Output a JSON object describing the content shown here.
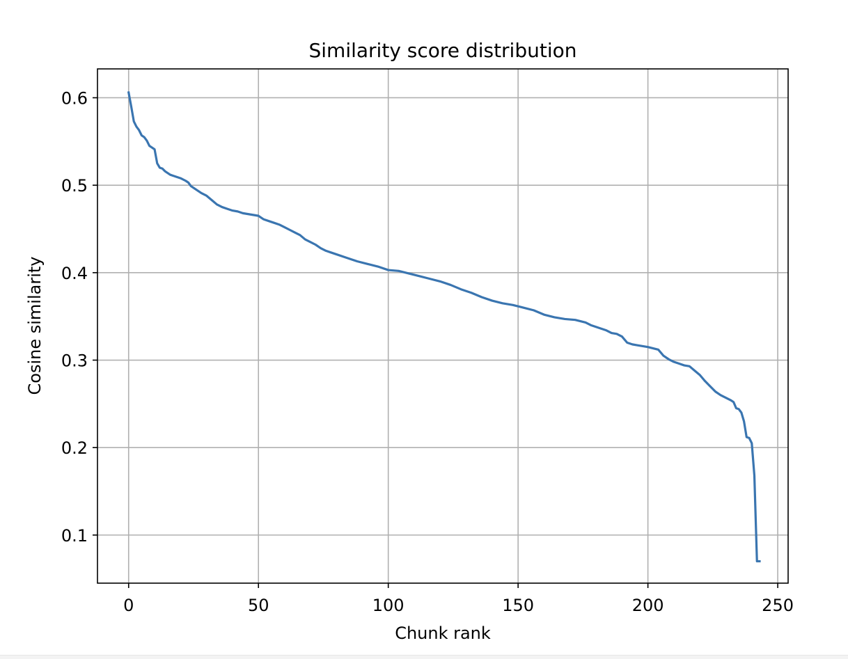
{
  "chart_data": {
    "type": "line",
    "title": "Similarity score distribution",
    "xlabel": "Chunk rank",
    "ylabel": "Cosine similarity",
    "xlim": [
      -12,
      254
    ],
    "ylim": [
      0.045,
      0.633
    ],
    "xticks": [
      0,
      50,
      100,
      150,
      200,
      250
    ],
    "xtick_labels": [
      "0",
      "50",
      "100",
      "150",
      "200",
      "250"
    ],
    "yticks": [
      0.1,
      0.2,
      0.3,
      0.4,
      0.5,
      0.6
    ],
    "ytick_labels": [
      "0.1",
      "0.2",
      "0.3",
      "0.4",
      "0.5",
      "0.6"
    ],
    "grid": true,
    "legend": false,
    "series": [
      {
        "color": "#3a75b0",
        "x": [
          0,
          1,
          2,
          3,
          4,
          5,
          6,
          7,
          8,
          9,
          10,
          11,
          12,
          13,
          14,
          15,
          16,
          17,
          18,
          19,
          20,
          22,
          23,
          24,
          26,
          28,
          30,
          32,
          34,
          36,
          38,
          40,
          42,
          44,
          46,
          48,
          50,
          52,
          54,
          56,
          58,
          60,
          62,
          64,
          66,
          68,
          70,
          72,
          74,
          76,
          78,
          80,
          84,
          88,
          92,
          96,
          100,
          104,
          108,
          112,
          116,
          120,
          124,
          128,
          132,
          136,
          140,
          144,
          148,
          152,
          156,
          160,
          164,
          168,
          172,
          176,
          178,
          180,
          182,
          184,
          186,
          188,
          190,
          192,
          194,
          196,
          198,
          200,
          204,
          206,
          208,
          210,
          212,
          214,
          216,
          218,
          220,
          222,
          224,
          226,
          228,
          230,
          232,
          233,
          234,
          235,
          236,
          237,
          238,
          239,
          240,
          241,
          242,
          243
        ],
        "y": [
          0.606,
          0.59,
          0.573,
          0.567,
          0.563,
          0.557,
          0.555,
          0.551,
          0.545,
          0.543,
          0.541,
          0.525,
          0.52,
          0.519,
          0.516,
          0.514,
          0.512,
          0.511,
          0.51,
          0.509,
          0.508,
          0.505,
          0.503,
          0.499,
          0.495,
          0.491,
          0.488,
          0.483,
          0.478,
          0.475,
          0.473,
          0.471,
          0.47,
          0.468,
          0.467,
          0.466,
          0.465,
          0.461,
          0.459,
          0.457,
          0.455,
          0.452,
          0.449,
          0.446,
          0.443,
          0.438,
          0.435,
          0.432,
          0.428,
          0.425,
          0.423,
          0.421,
          0.417,
          0.413,
          0.41,
          0.407,
          0.403,
          0.402,
          0.399,
          0.396,
          0.393,
          0.39,
          0.386,
          0.381,
          0.377,
          0.372,
          0.368,
          0.365,
          0.363,
          0.36,
          0.357,
          0.352,
          0.349,
          0.347,
          0.346,
          0.343,
          0.34,
          0.338,
          0.336,
          0.334,
          0.331,
          0.33,
          0.327,
          0.32,
          0.318,
          0.317,
          0.316,
          0.315,
          0.312,
          0.305,
          0.301,
          0.298,
          0.296,
          0.294,
          0.293,
          0.288,
          0.283,
          0.276,
          0.27,
          0.264,
          0.26,
          0.257,
          0.254,
          0.252,
          0.245,
          0.244,
          0.24,
          0.23,
          0.212,
          0.211,
          0.205,
          0.168,
          0.07,
          0.07
        ]
      }
    ]
  }
}
